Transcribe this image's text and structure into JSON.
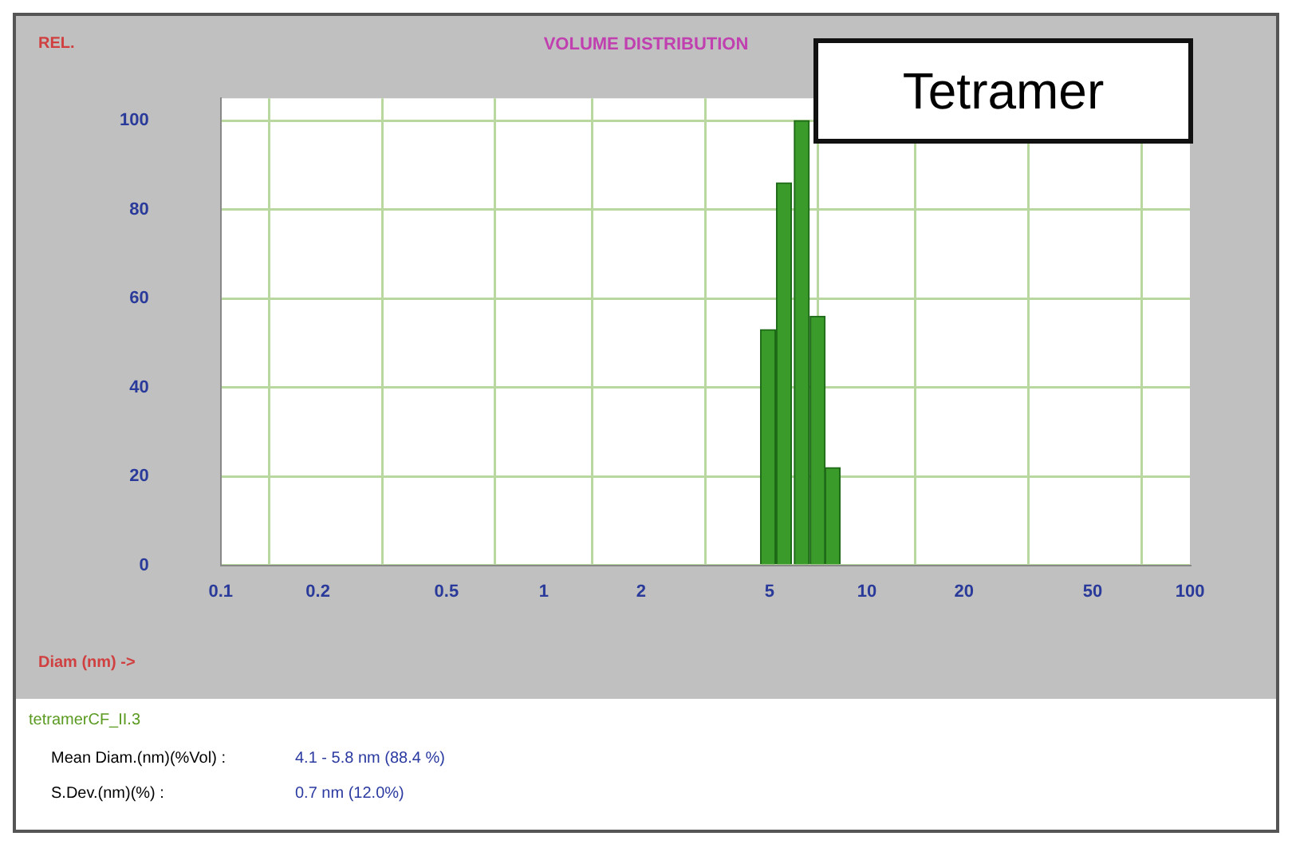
{
  "chart_data": {
    "type": "histogram",
    "title": "VOLUME DISTRIBUTION",
    "ylabel": "REL.",
    "xlabel": "Diam (nm) ->",
    "bins": [
      4.7,
      5.2,
      5.9,
      6.7,
      7.4,
      8.3
    ],
    "values": [
      53,
      86,
      100,
      56,
      22
    ],
    "color": "#3a9a2a",
    "log": "x",
    "xlim": [
      0.1,
      100
    ],
    "xticks": [
      0.1,
      0.2,
      0.5,
      1,
      2,
      5,
      10,
      20,
      50,
      100
    ],
    "ylim": [
      0,
      105
    ],
    "yticks": [
      0,
      20,
      40,
      60,
      80,
      100
    ],
    "grid": true,
    "annotations": [
      "Tetramer",
      "tetramerCF_II.3",
      "Mean Diam.(nm)(%Vol) :",
      "4.1 - 5.8 nm (88.4 %)",
      "S.Dev.(nm)(%) :",
      "0.7 nm (12.0%)"
    ]
  }
}
